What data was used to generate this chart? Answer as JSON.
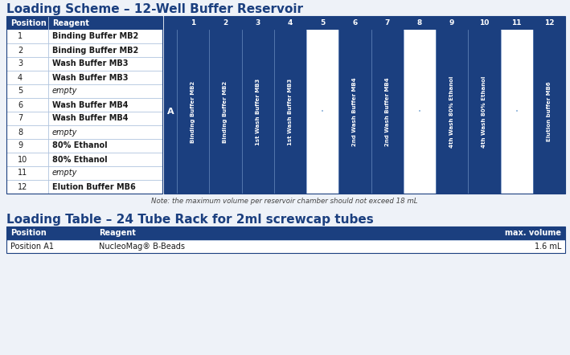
{
  "title1": "Loading Scheme – 12-Well Buffer Reservoir",
  "title2": "Loading Table – 24 Tube Rack for 2ml screwcap tubes",
  "note": "Note: the maximum volume per reservoir chamber should not exceed 18 mL",
  "dark_blue": "#1b3f7f",
  "white": "#ffffff",
  "bg_color": "#eef2f8",
  "row_line": "#b0c4de",
  "text_dark": "#1a1a1a",
  "table_left_headers": [
    "Position",
    "Reagent"
  ],
  "table_left_rows": [
    [
      "1",
      "Binding Buffer MB2"
    ],
    [
      "2",
      "Binding Buffer MB2"
    ],
    [
      "3",
      "Wash Buffer MB3"
    ],
    [
      "4",
      "Wash Buffer MB3"
    ],
    [
      "5",
      "empty"
    ],
    [
      "6",
      "Wash Buffer MB4"
    ],
    [
      "7",
      "Wash Buffer MB4"
    ],
    [
      "8",
      "empty"
    ],
    [
      "9",
      "80% Ethanol"
    ],
    [
      "10",
      "80% Ethanol"
    ],
    [
      "11",
      "empty"
    ],
    [
      "12",
      "Elution Buffer MB6"
    ]
  ],
  "reservoir_cols": [
    "1",
    "2",
    "3",
    "4",
    "5",
    "6",
    "7",
    "8",
    "9",
    "10",
    "11",
    "12"
  ],
  "reservoir_labels": [
    "Binding Buffer MB2",
    "Binding Buffer MB2",
    "1st Wash Buffer MB3",
    "1st Wash Buffer MB3",
    "",
    "2nd Wash Buffer MB4",
    "2nd Wash Buffer MB4",
    "",
    "4th Wash 80% Ethanol",
    "4th Wash 80% Ethanol",
    "",
    "Elution buffer MB6"
  ],
  "reservoir_superscripts": [
    "",
    "",
    "1st",
    "1st",
    "",
    "2nd",
    "2nd",
    "",
    "4th",
    "4th",
    "",
    ""
  ],
  "reservoir_label_main": [
    "Binding Buffer MB2",
    "Binding Buffer MB2",
    " Wash Buffer MB3",
    " Wash Buffer MB3",
    "",
    " Wash Buffer MB4",
    " Wash Buffer MB4",
    "",
    " Wash 80% Ethanol",
    " Wash 80% Ethanol",
    "",
    "Elution buffer MB6"
  ],
  "reservoir_filled": [
    true,
    true,
    true,
    true,
    false,
    true,
    true,
    false,
    true,
    true,
    false,
    true
  ],
  "row_A_label": "A",
  "bottom_table_headers": [
    "Position",
    "Reagent",
    "max. volume"
  ],
  "bottom_table_row": [
    "Position A1",
    "NucleoMag® B-Beads",
    "1.6 mL"
  ]
}
